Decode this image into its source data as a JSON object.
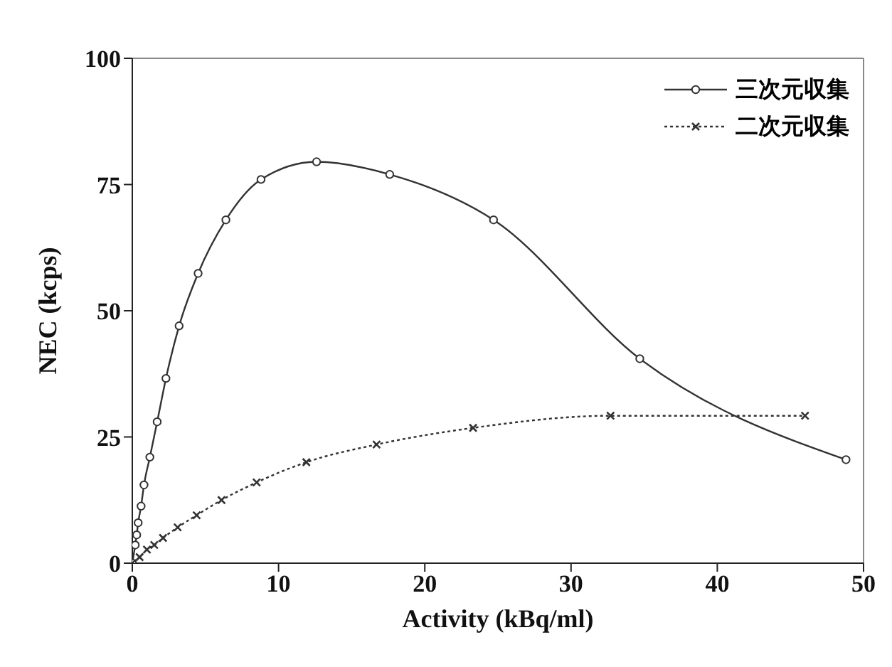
{
  "chart_data": {
    "type": "line",
    "xlabel": "Activity (kBq/ml)",
    "ylabel": "NEC (kcps)",
    "xlim": [
      0,
      50
    ],
    "xticks": [
      0,
      10,
      20,
      30,
      40,
      50
    ],
    "ylim": [
      0,
      100
    ],
    "yticks": [
      0,
      25,
      50,
      75,
      100
    ],
    "grid": false,
    "legend": "top right",
    "series": [
      {
        "name": "三次元収集",
        "color": "#333333",
        "marker": "circle",
        "line_style": "solid",
        "x": [
          0,
          0.2,
          0.3,
          0.4,
          0.6,
          0.8,
          1.2,
          1.7,
          2.3,
          3.2,
          4.5,
          6.4,
          8.8,
          12.6,
          17.6,
          24.7,
          34.7,
          48.8
        ],
        "values": [
          0,
          3.6,
          5.6,
          8,
          11.3,
          15.5,
          21,
          28,
          36.6,
          47,
          57.4,
          68,
          76,
          79.5,
          77,
          68,
          40.5,
          20.5
        ]
      },
      {
        "name": "二次元収集",
        "color": "#333333",
        "marker": "cross",
        "line_style": "dotted",
        "x": [
          0,
          0.5,
          1,
          1.5,
          2.1,
          3.1,
          4.4,
          6.1,
          8.5,
          11.9,
          16.7,
          23.3,
          32.7,
          46
        ],
        "values": [
          0,
          1.2,
          2.7,
          3.6,
          5,
          7.1,
          9.5,
          12.5,
          16,
          20,
          23.5,
          26.8,
          29.2,
          29.2
        ]
      }
    ]
  }
}
